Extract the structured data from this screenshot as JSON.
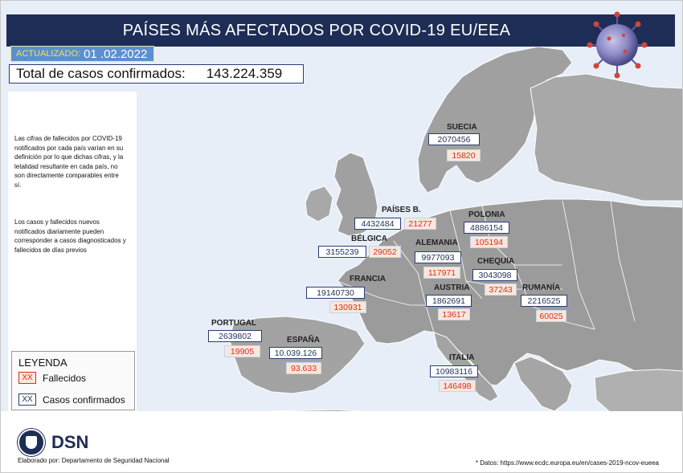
{
  "header": {
    "title": "PAÍSES MÁS AFECTADOS POR COVID-19 EU/EEA"
  },
  "updated": {
    "label": "ACTUALIZADO:",
    "value": "01 .02.2022"
  },
  "total": {
    "label": "Total de casos confirmados:",
    "value": "143.224.359"
  },
  "notes": [
    "Las cifras de fallecidos por COVID-19 notificados por cada país varían en su definición por lo que dichas cifras, y la letalidad resultante en cada país, no son directamente comparables entre sí.",
    "Los casos y fallecidos nuevos notificados diariamente pueden corresponder a casos diagnosticados y fallecidos de días previos"
  ],
  "legend": {
    "title": "LEYENDA",
    "deaths": {
      "swatch": "XX",
      "label": "Fallecidos"
    },
    "cases": {
      "swatch": "XX",
      "label": "Casos confirmados"
    }
  },
  "countries": {
    "suecia": {
      "name": "SUECIA",
      "cases": "2070456",
      "deaths": "15820"
    },
    "paisesb": {
      "name": "PAÍSES B.",
      "cases": "4432484",
      "deaths": "21277"
    },
    "polonia": {
      "name": "POLONIA",
      "cases": "4886154",
      "deaths": "105194"
    },
    "belgica": {
      "name": "BÉLGICA",
      "cases": "3155239",
      "deaths": "29052"
    },
    "alemania": {
      "name": "ALEMANIA",
      "cases": "9977093",
      "deaths": "117971"
    },
    "chequia": {
      "name": "CHEQUIA",
      "cases": "3043098",
      "deaths": "37243"
    },
    "francia": {
      "name": "FRANCIA",
      "cases": "19140730",
      "deaths": "130931"
    },
    "austria": {
      "name": "AUSTRIA",
      "cases": "1862691",
      "deaths": "13617"
    },
    "rumania": {
      "name": "RUMANÍA",
      "cases": "2216525",
      "deaths": "60025"
    },
    "portugal": {
      "name": "PORTUGAL",
      "cases": "2639802",
      "deaths": "19905"
    },
    "espana": {
      "name": "ESPAÑA",
      "cases": "10.039.126",
      "deaths": "93.633"
    },
    "italia": {
      "name": "ITALIA",
      "cases": "10983116",
      "deaths": "146498"
    }
  },
  "logo": {
    "text": "DSN"
  },
  "footer": {
    "credit": "Elaborado por: Departamento de Seguridad Nacional",
    "source": "* Datos: https://www.ecdc.europa.eu/en/cases-2019-ncov-eueea"
  },
  "colors": {
    "navy": "#1d2d55",
    "sea": "#e6eef7",
    "land": "#9b9b9b",
    "death": "#d8301f",
    "accent": "#5b8fd0"
  }
}
